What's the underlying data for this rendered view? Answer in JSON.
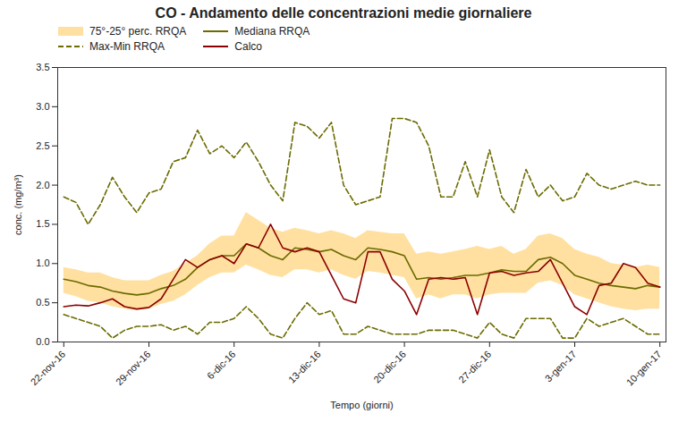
{
  "chart_data": {
    "type": "line",
    "title": "CO - Andamento delle concentrazioni medie giornaliere",
    "xlabel": "Tempo (giorni)",
    "ylabel": "conc. (mg/m³)",
    "x": [
      0,
      1,
      2,
      3,
      4,
      5,
      6,
      7,
      8,
      9,
      10,
      11,
      12,
      13,
      14,
      15,
      16,
      17,
      18,
      19,
      20,
      21,
      22,
      23,
      24,
      25,
      26,
      27,
      28,
      29,
      30,
      31,
      32,
      33,
      34,
      35,
      36,
      37,
      38,
      39,
      40,
      41,
      42,
      43,
      44,
      45,
      46,
      47,
      48,
      49
    ],
    "xlim": [
      -0.5,
      49.5
    ],
    "xticks": [
      {
        "value": 0,
        "label": "22-nov-16"
      },
      {
        "value": 7,
        "label": "29-nov-16"
      },
      {
        "value": 14,
        "label": "6-dic-16"
      },
      {
        "value": 21,
        "label": "13-dic-16"
      },
      {
        "value": 28,
        "label": "20-dic-16"
      },
      {
        "value": 35,
        "label": "27-dic-16"
      },
      {
        "value": 42,
        "label": "3-gen-17"
      },
      {
        "value": 49,
        "label": "10-gen-17"
      }
    ],
    "ylim": [
      0.0,
      3.5
    ],
    "yticks": [
      {
        "value": 0,
        "label": "0.0"
      },
      0.5,
      {
        "value": 1,
        "label": "1.0"
      },
      1.5,
      {
        "value": 2,
        "label": "2.0"
      },
      2.5,
      {
        "value": 3,
        "label": "3.0"
      },
      3.5
    ],
    "grid": false,
    "legend": "upper left",
    "series": [
      {
        "name": "75°-25° perc. RRQA",
        "type": "area",
        "color": "#FFE0A0",
        "low": [
          0.62,
          0.58,
          0.52,
          0.5,
          0.45,
          0.42,
          0.4,
          0.42,
          0.48,
          0.52,
          0.6,
          0.72,
          0.82,
          0.88,
          0.88,
          0.98,
          0.92,
          0.85,
          0.82,
          0.92,
          0.92,
          0.88,
          0.92,
          0.85,
          0.8,
          0.9,
          0.88,
          0.85,
          0.82,
          0.55,
          0.6,
          0.55,
          0.6,
          0.6,
          0.55,
          0.6,
          0.62,
          0.62,
          0.62,
          0.75,
          0.78,
          0.72,
          0.6,
          0.55,
          0.5,
          0.45,
          0.42,
          0.4,
          0.42,
          0.42
        ],
        "high": [
          0.95,
          0.92,
          0.88,
          0.88,
          0.82,
          0.78,
          0.78,
          0.78,
          0.85,
          0.9,
          1.0,
          1.1,
          1.25,
          1.35,
          1.35,
          1.65,
          1.55,
          1.45,
          1.4,
          1.45,
          1.42,
          1.38,
          1.42,
          1.38,
          1.32,
          1.42,
          1.4,
          1.38,
          1.38,
          1.12,
          1.15,
          1.12,
          1.15,
          1.18,
          1.22,
          1.18,
          1.22,
          1.12,
          1.18,
          1.35,
          1.38,
          1.32,
          1.18,
          1.12,
          1.08,
          1.0,
          0.98,
          0.95,
          0.98,
          0.95
        ]
      },
      {
        "name": "Mediana RRQA",
        "type": "line",
        "line_style": "solid",
        "color": "#6B6B00",
        "values": [
          0.8,
          0.77,
          0.72,
          0.7,
          0.65,
          0.62,
          0.6,
          0.62,
          0.68,
          0.72,
          0.8,
          0.95,
          1.05,
          1.1,
          1.1,
          1.25,
          1.2,
          1.1,
          1.05,
          1.2,
          1.18,
          1.15,
          1.18,
          1.1,
          1.05,
          1.2,
          1.18,
          1.15,
          1.1,
          0.8,
          0.82,
          0.8,
          0.82,
          0.85,
          0.85,
          0.88,
          0.92,
          0.9,
          0.9,
          1.05,
          1.08,
          1.0,
          0.85,
          0.8,
          0.75,
          0.72,
          0.7,
          0.68,
          0.72,
          0.7
        ]
      },
      {
        "name": "Max-Min RRQA",
        "type": "line",
        "line_style": "dashed",
        "color": "#6B6B00",
        "high": [
          1.85,
          1.78,
          1.5,
          1.75,
          2.1,
          1.85,
          1.65,
          1.9,
          1.95,
          2.3,
          2.35,
          2.7,
          2.4,
          2.5,
          2.35,
          2.55,
          2.3,
          2.0,
          1.8,
          2.8,
          2.75,
          2.6,
          2.8,
          2.0,
          1.75,
          1.8,
          1.85,
          2.85,
          2.85,
          2.8,
          2.5,
          1.85,
          1.85,
          2.3,
          1.85,
          2.45,
          1.85,
          1.65,
          2.2,
          1.85,
          2.0,
          1.8,
          1.85,
          2.15,
          2.0,
          1.95,
          2.0,
          2.05,
          2.0,
          2.0
        ],
        "low": [
          0.35,
          0.3,
          0.25,
          0.2,
          0.05,
          0.15,
          0.2,
          0.2,
          0.22,
          0.15,
          0.2,
          0.1,
          0.25,
          0.25,
          0.3,
          0.45,
          0.3,
          0.1,
          0.05,
          0.3,
          0.5,
          0.35,
          0.4,
          0.1,
          0.1,
          0.2,
          0.15,
          0.1,
          0.1,
          0.1,
          0.15,
          0.15,
          0.15,
          0.1,
          0.05,
          0.25,
          0.1,
          0.05,
          0.3,
          0.3,
          0.3,
          0.05,
          0.05,
          0.3,
          0.2,
          0.25,
          0.3,
          0.2,
          0.1,
          0.1
        ]
      },
      {
        "name": "Calco",
        "type": "line",
        "line_style": "solid",
        "color": "#8B0000",
        "values": [
          0.45,
          0.47,
          0.46,
          0.5,
          0.55,
          0.45,
          0.42,
          0.44,
          0.55,
          0.8,
          1.05,
          0.95,
          1.05,
          1.1,
          1.0,
          1.25,
          1.2,
          1.5,
          1.2,
          1.15,
          1.2,
          1.15,
          0.85,
          0.55,
          0.5,
          1.15,
          1.15,
          0.8,
          0.65,
          0.35,
          0.8,
          0.82,
          0.8,
          0.82,
          0.35,
          0.88,
          0.9,
          0.85,
          0.88,
          0.9,
          1.05,
          0.75,
          0.45,
          0.35,
          0.72,
          0.75,
          1.0,
          0.95,
          0.75,
          0.7
        ]
      }
    ]
  }
}
